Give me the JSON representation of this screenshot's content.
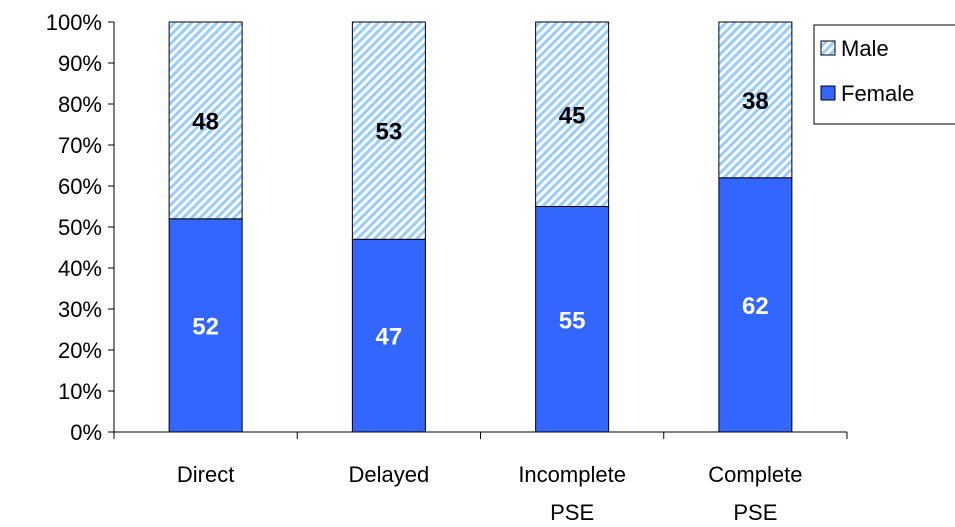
{
  "chart_data": {
    "type": "bar",
    "stacked": true,
    "percent": true,
    "categories": [
      [
        "Direct"
      ],
      [
        "Delayed"
      ],
      [
        "Incomplete",
        "PSE"
      ],
      [
        "Complete",
        "PSE"
      ]
    ],
    "series": [
      {
        "name": "Female",
        "values": [
          52,
          47,
          55,
          62
        ],
        "color": "#3366ff",
        "fill": "solid",
        "label_color": "#ffffff"
      },
      {
        "name": "Male",
        "values": [
          48,
          53,
          45,
          38
        ],
        "color": "#99ccff",
        "fill": "hatched",
        "label_color": "#000000"
      }
    ],
    "ylim": [
      0,
      100
    ],
    "yticks": [
      "0%",
      "10%",
      "20%",
      "30%",
      "40%",
      "50%",
      "60%",
      "70%",
      "80%",
      "90%",
      "100%"
    ],
    "legend": {
      "position": "top-right",
      "entries": [
        "Male",
        "Female"
      ]
    },
    "grid": false,
    "title": "",
    "xlabel": "",
    "ylabel": ""
  }
}
